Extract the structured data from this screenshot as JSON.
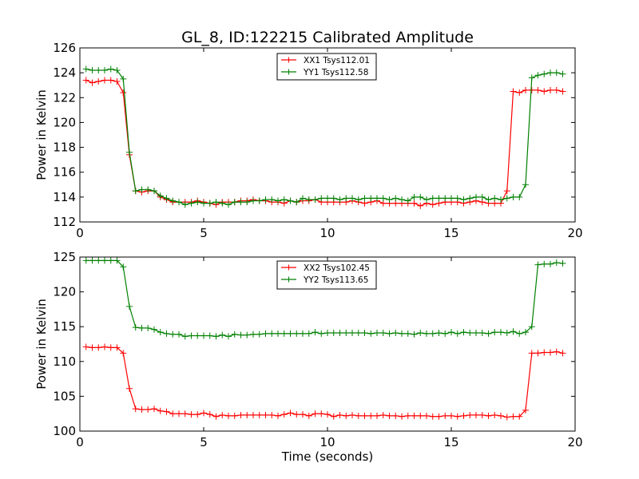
{
  "figure": {
    "title": "GL_8, ID:122215 Calibrated Amplitude"
  },
  "chart_data": [
    {
      "type": "line",
      "title": "GL_8, ID:122215 Calibrated Amplitude",
      "xlabel": "",
      "ylabel": "Power in Kelvin",
      "xlim": [
        0,
        20
      ],
      "ylim": [
        112,
        126
      ],
      "xticks": [
        0,
        5,
        10,
        15,
        20
      ],
      "yticks": [
        112,
        114,
        116,
        118,
        120,
        122,
        124,
        126
      ],
      "grid": false,
      "legend_position": "top-center",
      "x": [
        0.25,
        0.5,
        0.75,
        1.0,
        1.25,
        1.5,
        1.75,
        2.0,
        2.25,
        2.5,
        2.75,
        3.0,
        3.25,
        3.5,
        3.75,
        4.0,
        4.25,
        4.5,
        4.75,
        5.0,
        5.25,
        5.5,
        5.75,
        6.0,
        6.25,
        6.5,
        6.75,
        7.0,
        7.25,
        7.5,
        7.75,
        8.0,
        8.25,
        8.5,
        8.75,
        9.0,
        9.25,
        9.5,
        9.75,
        10.0,
        10.25,
        10.5,
        10.75,
        11.0,
        11.25,
        11.5,
        11.75,
        12.0,
        12.25,
        12.5,
        12.75,
        13.0,
        13.25,
        13.5,
        13.75,
        14.0,
        14.25,
        14.5,
        14.75,
        15.0,
        15.25,
        15.5,
        15.75,
        16.0,
        16.25,
        16.5,
        16.75,
        17.0,
        17.25,
        17.5,
        17.75,
        18.0,
        18.25,
        18.5,
        18.75,
        19.0,
        19.25,
        19.5
      ],
      "series": [
        {
          "name": "XX1 Tsys112.01",
          "color": "#ff0000",
          "values": [
            123.4,
            123.2,
            123.3,
            123.4,
            123.4,
            123.3,
            122.4,
            117.4,
            114.5,
            114.4,
            114.5,
            114.5,
            114.0,
            113.8,
            113.6,
            113.6,
            113.6,
            113.6,
            113.7,
            113.6,
            113.5,
            113.4,
            113.6,
            113.6,
            113.6,
            113.7,
            113.7,
            113.8,
            113.7,
            113.7,
            113.6,
            113.6,
            113.5,
            113.7,
            113.6,
            113.7,
            113.7,
            113.8,
            113.6,
            113.6,
            113.6,
            113.6,
            113.6,
            113.7,
            113.6,
            113.5,
            113.6,
            113.7,
            113.5,
            113.5,
            113.5,
            113.5,
            113.5,
            113.5,
            113.3,
            113.5,
            113.4,
            113.5,
            113.6,
            113.6,
            113.6,
            113.5,
            113.6,
            113.7,
            113.6,
            113.5,
            113.5,
            113.5,
            114.5,
            122.5,
            122.4,
            122.6,
            122.6,
            122.6,
            122.5,
            122.6,
            122.6,
            122.5
          ]
        },
        {
          "name": "YY1 Tsys112.58",
          "color": "#008000",
          "values": [
            124.3,
            124.2,
            124.2,
            124.2,
            124.3,
            124.2,
            123.5,
            117.6,
            114.5,
            114.6,
            114.6,
            114.5,
            114.1,
            113.9,
            113.7,
            113.6,
            113.4,
            113.5,
            113.6,
            113.5,
            113.5,
            113.6,
            113.5,
            113.4,
            113.6,
            113.6,
            113.6,
            113.7,
            113.7,
            113.8,
            113.8,
            113.7,
            113.8,
            113.7,
            113.6,
            113.9,
            113.8,
            113.8,
            113.9,
            113.9,
            113.9,
            113.8,
            113.9,
            113.9,
            113.8,
            113.9,
            113.9,
            113.9,
            113.9,
            113.8,
            113.9,
            113.8,
            113.7,
            114.0,
            114.0,
            113.8,
            113.9,
            113.9,
            113.9,
            113.9,
            113.9,
            113.8,
            113.9,
            114.0,
            114.0,
            113.8,
            113.9,
            113.8,
            113.9,
            114.0,
            114.0,
            115.0,
            123.6,
            123.8,
            123.9,
            124.0,
            124.0,
            123.9
          ]
        }
      ]
    },
    {
      "type": "line",
      "title": "",
      "xlabel": "Time (seconds)",
      "ylabel": "Power in Kelvin",
      "xlim": [
        0,
        20
      ],
      "ylim": [
        100,
        125
      ],
      "xticks": [
        0,
        5,
        10,
        15,
        20
      ],
      "yticks": [
        100,
        105,
        110,
        115,
        120,
        125
      ],
      "grid": false,
      "legend_position": "top-center",
      "x": [
        0.25,
        0.5,
        0.75,
        1.0,
        1.25,
        1.5,
        1.75,
        2.0,
        2.25,
        2.5,
        2.75,
        3.0,
        3.25,
        3.5,
        3.75,
        4.0,
        4.25,
        4.5,
        4.75,
        5.0,
        5.25,
        5.5,
        5.75,
        6.0,
        6.25,
        6.5,
        6.75,
        7.0,
        7.25,
        7.5,
        7.75,
        8.0,
        8.25,
        8.5,
        8.75,
        9.0,
        9.25,
        9.5,
        9.75,
        10.0,
        10.25,
        10.5,
        10.75,
        11.0,
        11.25,
        11.5,
        11.75,
        12.0,
        12.25,
        12.5,
        12.75,
        13.0,
        13.25,
        13.5,
        13.75,
        14.0,
        14.25,
        14.5,
        14.75,
        15.0,
        15.25,
        15.5,
        15.75,
        16.0,
        16.25,
        16.5,
        16.75,
        17.0,
        17.25,
        17.5,
        17.75,
        18.0,
        18.25,
        18.5,
        18.75,
        19.0,
        19.25,
        19.5
      ],
      "series": [
        {
          "name": "XX2 Tsys102.45",
          "color": "#ff0000",
          "values": [
            112.1,
            112.0,
            112.0,
            112.1,
            112.0,
            112.0,
            111.2,
            106.1,
            103.2,
            103.1,
            103.1,
            103.2,
            102.9,
            102.8,
            102.5,
            102.5,
            102.5,
            102.4,
            102.4,
            102.6,
            102.4,
            102.1,
            102.3,
            102.2,
            102.2,
            102.3,
            102.3,
            102.3,
            102.3,
            102.3,
            102.3,
            102.2,
            102.4,
            102.6,
            102.4,
            102.4,
            102.2,
            102.5,
            102.5,
            102.4,
            102.1,
            102.3,
            102.2,
            102.3,
            102.2,
            102.2,
            102.2,
            102.2,
            102.3,
            102.2,
            102.2,
            102.1,
            102.2,
            102.2,
            102.2,
            102.2,
            102.1,
            102.1,
            102.2,
            102.2,
            102.1,
            102.2,
            102.3,
            102.3,
            102.3,
            102.2,
            102.3,
            102.2,
            102.0,
            102.1,
            102.1,
            103.0,
            111.2,
            111.2,
            111.3,
            111.3,
            111.4,
            111.2
          ]
        },
        {
          "name": "YY2 Tsys113.65",
          "color": "#008000",
          "values": [
            124.5,
            124.5,
            124.5,
            124.5,
            124.5,
            124.5,
            123.6,
            117.9,
            114.9,
            114.8,
            114.8,
            114.6,
            114.2,
            114.0,
            113.9,
            113.9,
            113.6,
            113.7,
            113.7,
            113.7,
            113.7,
            113.6,
            113.8,
            113.6,
            113.9,
            113.8,
            113.8,
            113.9,
            113.9,
            114.0,
            114.0,
            114.0,
            114.0,
            114.0,
            114.0,
            114.0,
            114.0,
            114.2,
            114.0,
            114.1,
            114.1,
            114.1,
            114.1,
            114.1,
            114.1,
            114.1,
            114.0,
            114.1,
            114.1,
            114.0,
            114.1,
            114.0,
            114.0,
            113.9,
            114.1,
            114.0,
            114.0,
            114.1,
            114.0,
            114.2,
            114.0,
            114.2,
            114.1,
            114.1,
            114.1,
            114.0,
            114.2,
            114.2,
            114.1,
            114.3,
            114.0,
            114.2,
            115.0,
            123.9,
            124.0,
            124.0,
            124.2,
            124.1
          ]
        }
      ]
    }
  ]
}
